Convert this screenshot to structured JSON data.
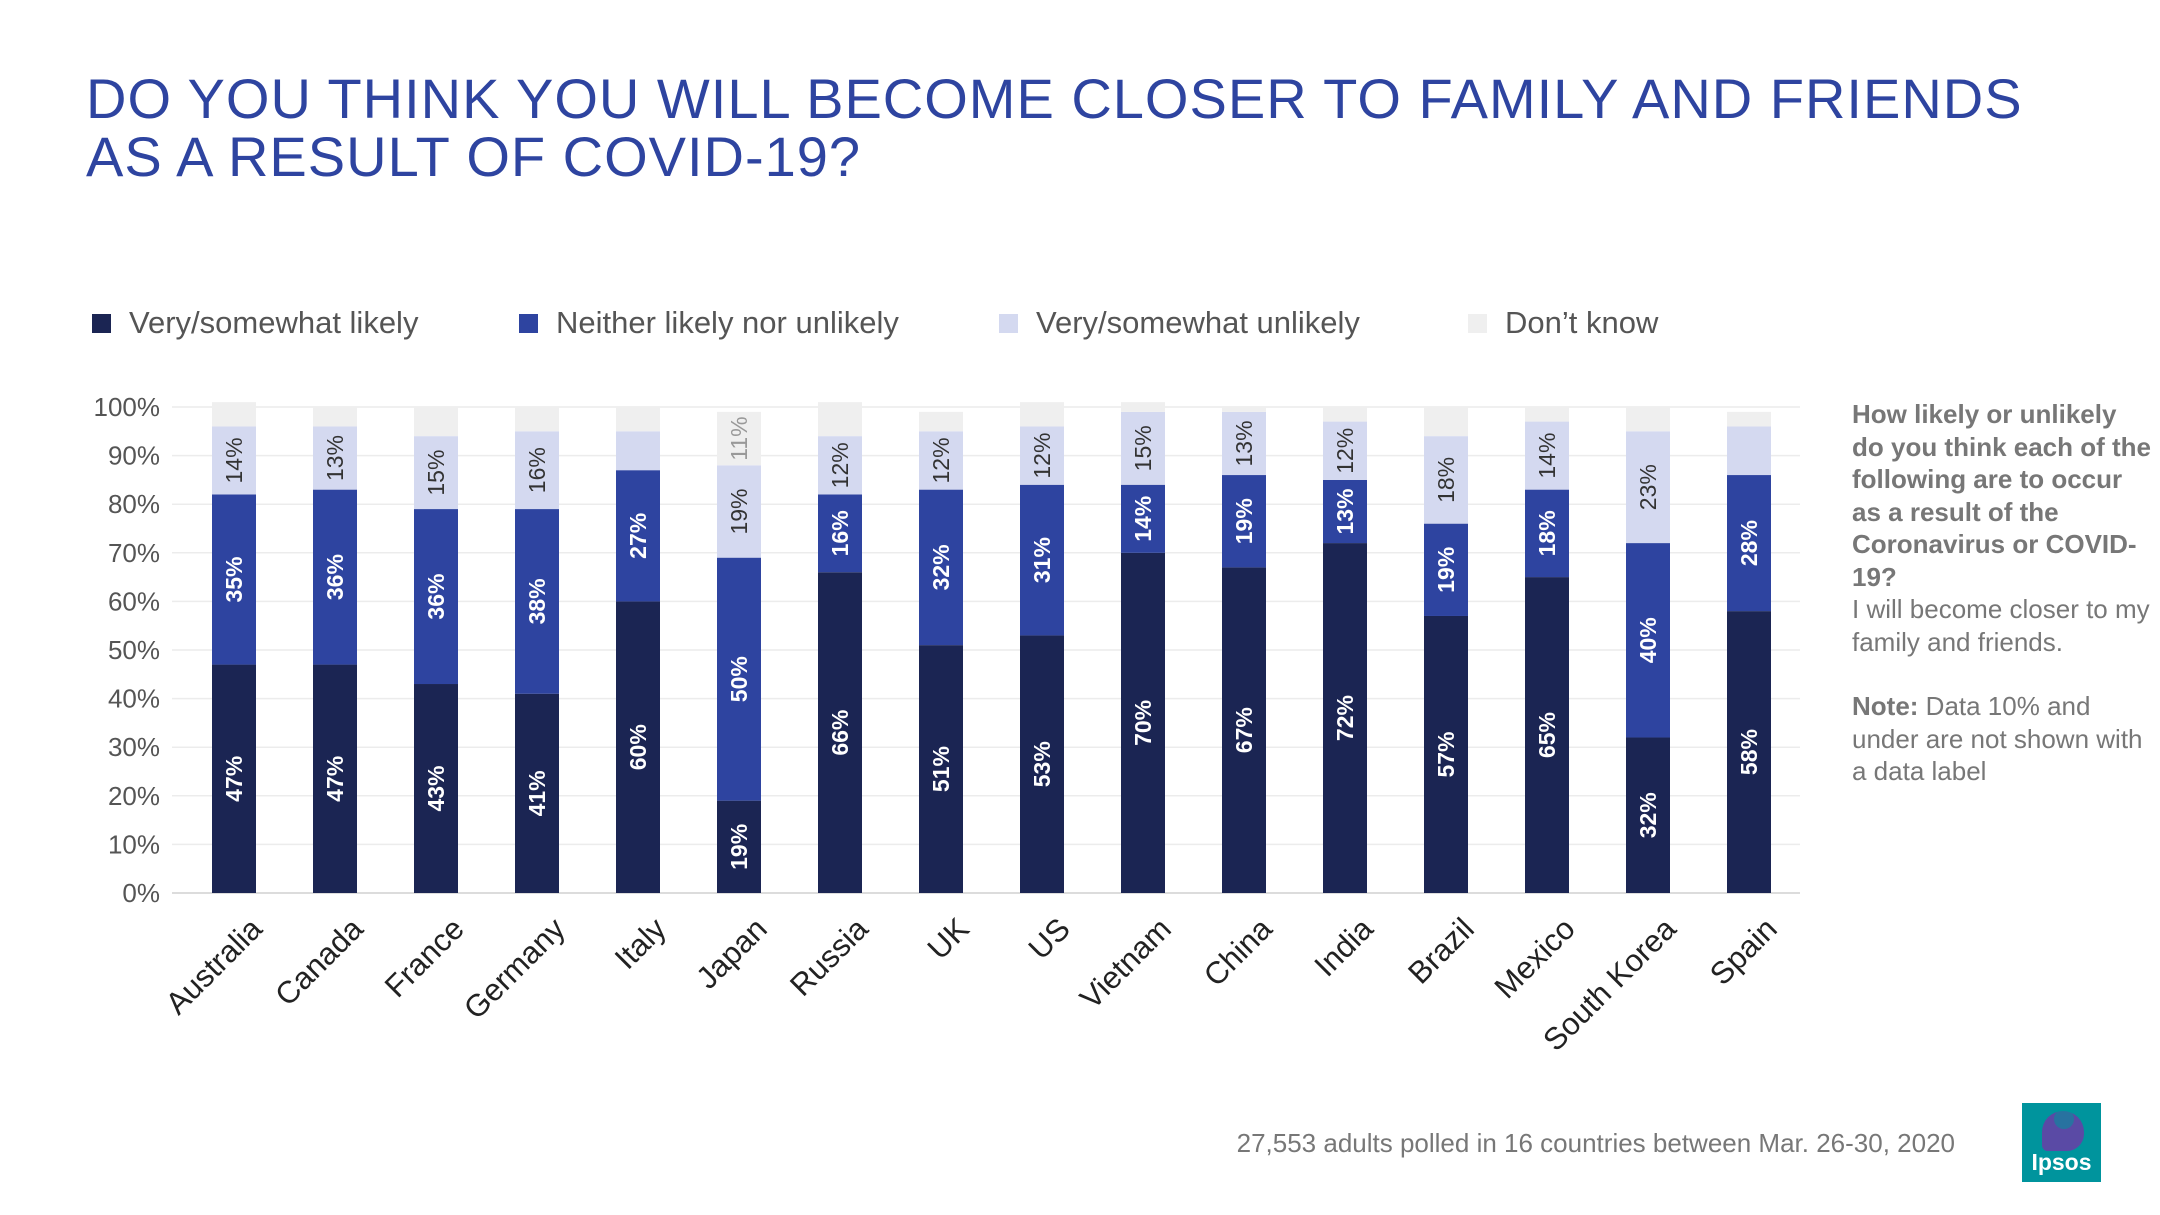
{
  "title": {
    "line1": "DO YOU THINK YOU WILL BECOME CLOSER TO FAMILY AND FRIENDS",
    "line2": "AS A RESULT OF COVID-19?"
  },
  "legend": [
    {
      "label": "Very/somewhat likely",
      "color": "#1b2553"
    },
    {
      "label": "Neither likely nor unlikely",
      "color": "#2e44a0"
    },
    {
      "label": "Very/somewhat unlikely",
      "color": "#d4d9f0"
    },
    {
      "label": "Don’t know",
      "color": "#efefef"
    }
  ],
  "chart_data": {
    "type": "bar",
    "stacked": true,
    "title": "DO YOU THINK YOU WILL BECOME CLOSER TO FAMILY AND FRIENDS AS A RESULT OF COVID-19?",
    "xlabel": "",
    "ylabel": "",
    "ylim": [
      0,
      100
    ],
    "yticks": [
      "0%",
      "10%",
      "20%",
      "30%",
      "40%",
      "50%",
      "60%",
      "70%",
      "80%",
      "90%",
      "100%"
    ],
    "grid": true,
    "legend_position": "top",
    "categories": [
      "Australia",
      "Canada",
      "France",
      "Germany",
      "Italy",
      "Japan",
      "Russia",
      "UK",
      "US",
      "Vietnam",
      "China",
      "India",
      "Brazil",
      "Mexico",
      "South Korea",
      "Spain"
    ],
    "series": [
      {
        "name": "Very/somewhat likely",
        "color": "#1b2553",
        "label_color": "#ffffff",
        "values": [
          47,
          47,
          43,
          41,
          60,
          19,
          66,
          51,
          53,
          70,
          67,
          72,
          57,
          65,
          32,
          58
        ],
        "labels": [
          "47%",
          "47%",
          "43%",
          "41%",
          "60%",
          "19%",
          "66%",
          "51%",
          "53%",
          "70%",
          "67%",
          "72%",
          "57%",
          "65%",
          "32%",
          "58%"
        ]
      },
      {
        "name": "Neither likely nor unlikely",
        "color": "#2e44a0",
        "label_color": "#ffffff",
        "values": [
          35,
          36,
          36,
          38,
          27,
          50,
          16,
          32,
          31,
          14,
          19,
          13,
          19,
          18,
          40,
          28
        ],
        "labels": [
          "35%",
          "36%",
          "36%",
          "38%",
          "27%",
          "50%",
          "16%",
          "32%",
          "31%",
          "14%",
          "19%",
          "13%",
          "19%",
          "18%",
          "40%",
          "28%"
        ]
      },
      {
        "name": "Very/somewhat unlikely",
        "color": "#d4d9f0",
        "label_color": "#333333",
        "values": [
          14,
          13,
          15,
          16,
          8,
          19,
          12,
          12,
          12,
          15,
          13,
          12,
          18,
          14,
          23,
          10
        ],
        "labels": [
          "14%",
          "13%",
          "15%",
          "16%",
          "",
          "19%",
          "12%",
          "12%",
          "12%",
          "15%",
          "13%",
          "12%",
          "18%",
          "14%",
          "23%",
          ""
        ]
      },
      {
        "name": "Don’t know",
        "color": "#efefef",
        "label_color": "#999999",
        "values": [
          5,
          4,
          6,
          5,
          5,
          11,
          7,
          4,
          5,
          2,
          1,
          3,
          6,
          3,
          5,
          3
        ],
        "labels": [
          "",
          "",
          "",
          "",
          "",
          "11%",
          "",
          "",
          "",
          "",
          "",
          "",
          "",
          "",
          "",
          ""
        ]
      }
    ]
  },
  "side_text": {
    "question": "How likely or unlikely do you think each of the following are to occur as a result of the Coronavirus or COVID-19?",
    "statement": "I will become closer to my family and friends.",
    "note_label": "Note:",
    "note_text": " Data 10% and under are not shown with a data label"
  },
  "footer": "27,553 adults polled in 16 countries between Mar. 26-30, 2020",
  "logo": {
    "text": "Ipsos",
    "color": "#00949d",
    "accent": "#5a4aa5"
  }
}
